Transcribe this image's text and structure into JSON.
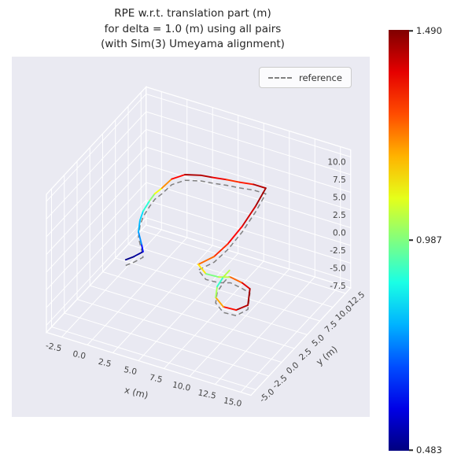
{
  "figure": {
    "title_lines": [
      "RPE w.r.t. translation part (m)",
      "for delta = 1.0 (m) using all pairs",
      "(with Sim(3) Umeyama alignment)"
    ],
    "background_color": "#ffffff",
    "axes_background_color": "#eaeaf2",
    "grid_color": "#ffffff"
  },
  "legend": {
    "label": "reference",
    "line_style": "dashed",
    "line_color": "#808080"
  },
  "colorbar": {
    "colormap": "jet",
    "tick_labels": [
      "1.490",
      "0.987",
      "0.483"
    ],
    "vmin": 0.483,
    "vmax": 1.49
  },
  "chart_data": {
    "type": "line",
    "projection": "3d",
    "title": "RPE w.r.t. translation part (m) for delta = 1.0 (m) using all pairs (with Sim(3) Umeyama alignment)",
    "xlabel": "x (m)",
    "ylabel": "y (m)",
    "xticks": [
      -2.5,
      0.0,
      2.5,
      5.0,
      7.5,
      10.0,
      12.5,
      15.0
    ],
    "yticks": [
      -5.0,
      -2.5,
      0.0,
      2.5,
      5.0,
      7.5,
      10.0,
      12.5
    ],
    "zticks": [
      -7.5,
      -5.0,
      -2.5,
      0.0,
      2.5,
      5.0,
      7.5,
      10.0
    ],
    "xlim": [
      -4,
      16
    ],
    "ylim": [
      -6,
      13.5
    ],
    "zlim": [
      -8.5,
      11
    ],
    "colormap": "jet",
    "vmin": 0.483,
    "vmax": 1.49,
    "grid": true,
    "legend_position": "upper right",
    "series": [
      {
        "name": "reference",
        "style": "dashed",
        "color": "#808080",
        "points": [
          [
            1.8,
            -2.1,
            0.5
          ],
          [
            2.1,
            -1.1,
            0.3
          ],
          [
            2.3,
            0.3,
            0.0
          ],
          [
            2.2,
            0.2,
            1.1
          ],
          [
            2.1,
            -0.2,
            3.1
          ],
          [
            2.1,
            0.1,
            4.5
          ],
          [
            2.2,
            0.5,
            5.5
          ],
          [
            2.4,
            1.4,
            6.4
          ],
          [
            2.6,
            2.0,
            7.0
          ],
          [
            2.8,
            3.0,
            7.1
          ],
          [
            3.2,
            4.1,
            7.7
          ],
          [
            3.8,
            5.5,
            7.5
          ],
          [
            4.6,
            7.0,
            6.6
          ],
          [
            5.2,
            8.1,
            5.7
          ],
          [
            6.0,
            9.2,
            4.9
          ],
          [
            6.8,
            10.2,
            4.1
          ],
          [
            7.6,
            11.3,
            3.3
          ],
          [
            8.4,
            12.1,
            2.5
          ],
          [
            8.1,
            10.7,
            0.9
          ],
          [
            7.6,
            9.1,
            -0.9
          ],
          [
            7.1,
            7.3,
            -2.2
          ],
          [
            6.6,
            5.6,
            -2.9
          ],
          [
            6.0,
            3.7,
            -2.8
          ],
          [
            6.4,
            4.4,
            -4.5
          ],
          [
            7.0,
            5.7,
            -5.7
          ],
          [
            7.6,
            6.8,
            -6.3
          ],
          [
            8.2,
            7.9,
            -7.7
          ],
          [
            8.7,
            8.4,
            -8.5
          ],
          [
            9.7,
            6.0,
            -8.5
          ],
          [
            9.4,
            4.3,
            -8.2
          ],
          [
            9.0,
            2.6,
            -6.6
          ],
          [
            8.7,
            1.7,
            -4.7
          ],
          [
            8.6,
            2.2,
            -3.6
          ],
          [
            8.7,
            3.2,
            -3.0
          ],
          [
            8.9,
            4.0,
            -2.6
          ]
        ]
      },
      {
        "name": "RPE w.r.t. translation part (m)",
        "style": "solid",
        "colormap": "jet",
        "points": [
          [
            1.6,
            -1.7,
            0.9
          ],
          [
            1.9,
            -0.7,
            0.7
          ],
          [
            2.1,
            0.7,
            0.4
          ],
          [
            2.0,
            0.6,
            1.5
          ],
          [
            1.9,
            0.2,
            3.5
          ],
          [
            1.9,
            0.5,
            4.9
          ],
          [
            2.0,
            0.9,
            5.9
          ],
          [
            2.2,
            1.8,
            6.8
          ],
          [
            2.4,
            2.4,
            7.4
          ],
          [
            2.6,
            3.4,
            7.5
          ],
          [
            3.0,
            4.5,
            8.1
          ],
          [
            3.6,
            5.9,
            7.9
          ],
          [
            4.4,
            7.4,
            7.0
          ],
          [
            5.0,
            8.5,
            6.1
          ],
          [
            5.8,
            9.6,
            5.3
          ],
          [
            6.6,
            10.6,
            4.5
          ],
          [
            7.4,
            11.7,
            3.7
          ],
          [
            8.2,
            12.5,
            2.9
          ],
          [
            7.9,
            11.1,
            1.3
          ],
          [
            7.4,
            9.5,
            -0.5
          ],
          [
            6.9,
            7.7,
            -1.8
          ],
          [
            6.4,
            6.0,
            -2.5
          ],
          [
            5.8,
            4.1,
            -2.4
          ],
          [
            6.2,
            4.8,
            -4.1
          ],
          [
            6.8,
            6.1,
            -5.3
          ],
          [
            7.4,
            7.2,
            -5.9
          ],
          [
            8.0,
            8.3,
            -7.3
          ],
          [
            8.5,
            8.8,
            -8.3
          ],
          [
            9.5,
            6.4,
            -8.3
          ],
          [
            9.2,
            4.7,
            -7.8
          ],
          [
            8.8,
            3.0,
            -6.2
          ],
          [
            8.5,
            2.1,
            -4.3
          ],
          [
            8.4,
            2.6,
            -3.2
          ],
          [
            8.5,
            3.6,
            -2.6
          ],
          [
            8.7,
            4.4,
            -2.2
          ]
        ],
        "errors": [
          0.49,
          0.5,
          0.52,
          0.72,
          0.78,
          0.8,
          0.85,
          0.95,
          1.05,
          1.15,
          1.3,
          1.42,
          1.47,
          1.4,
          1.36,
          1.28,
          1.4,
          1.47,
          1.44,
          1.38,
          1.35,
          1.3,
          1.22,
          1.05,
          0.92,
          1.18,
          1.35,
          1.44,
          1.47,
          1.4,
          1.3,
          1.1,
          0.95,
          0.88,
          1.2
        ]
      }
    ]
  }
}
